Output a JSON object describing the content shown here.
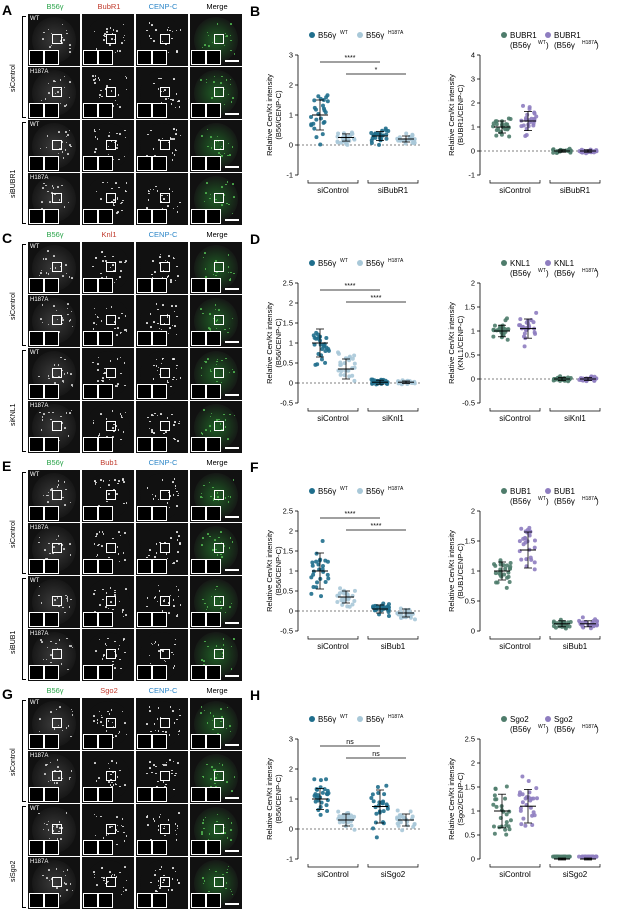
{
  "colors": {
    "b56_wt": "#1f6e8c",
    "b56_mut": "#a8c8d8",
    "partner_wt": "#4e7c6b",
    "partner_mut": "#8e7dc0"
  },
  "panels": [
    {
      "micro": {
        "letter": "A",
        "cols": [
          "B56γ",
          "BubR1",
          "CENP-C",
          "Merge"
        ],
        "col_colors": [
          "#2aa44a",
          "#c0392b",
          "#2d87c8",
          "#000"
        ],
        "groups": [
          {
            "label": "siControl",
            "rows": [
              "WT",
              "H187A"
            ]
          },
          {
            "label": "siBUBR1",
            "rows": [
              "WT",
              "H187A"
            ]
          }
        ]
      },
      "left": {
        "letter": "B",
        "ylabel1": "Relative Cen/Kt intensity",
        "ylabel2": "(B56/CENP-C)",
        "legend": [
          {
            "name": "B56γ",
            "sup": "WT"
          },
          {
            "name": "B56γ",
            "sup": "H187A"
          }
        ],
        "groups": [
          "siControl",
          "siBubR1"
        ],
        "ylim": [
          -1,
          3
        ],
        "ticks": [
          -1,
          0,
          1,
          2,
          3
        ],
        "sig": [
          "****",
          "*"
        ]
      },
      "right": {
        "ylabel1": "Relative Cen/Kt intensity",
        "ylabel2": "(BUBR1/CENP-C)",
        "legend": [
          {
            "name": "BUBR1",
            "sub": "(B56γ",
            "sup": "WT",
            "end": ")"
          },
          {
            "name": "BUBR1",
            "sub": "(B56γ",
            "sup": "H187A",
            "end": ")"
          }
        ],
        "groups": [
          "siControl",
          "siBubR1"
        ],
        "ylim": [
          -1,
          4
        ],
        "ticks": [
          -1,
          0,
          1,
          2,
          3,
          4
        ]
      }
    },
    {
      "micro": {
        "letter": "C",
        "cols": [
          "B56γ",
          "Knl1",
          "CENP-C",
          "Merge"
        ],
        "col_colors": [
          "#2aa44a",
          "#c0392b",
          "#2d87c8",
          "#000"
        ],
        "groups": [
          {
            "label": "siControl",
            "rows": [
              "WT",
              "H187A"
            ]
          },
          {
            "label": "siKNL1",
            "rows": [
              "WT",
              "H187A"
            ]
          }
        ]
      },
      "left": {
        "letter": "D",
        "ylabel1": "Relative Cen/Kt intensity",
        "ylabel2": "(B56/CENP-C)",
        "legend": [
          {
            "name": "B56γ",
            "sup": "WT"
          },
          {
            "name": "B56γ",
            "sup": "H187A"
          }
        ],
        "groups": [
          "siControl",
          "siKnl1"
        ],
        "ylim": [
          -0.5,
          2.5
        ],
        "ticks": [
          -0.5,
          0.0,
          0.5,
          1.0,
          1.5,
          2.0,
          2.5
        ],
        "sig": [
          "****",
          "****"
        ]
      },
      "right": {
        "ylabel1": "Relative Cen/Kt intensity",
        "ylabel2": "(KNL1/CENP-C)",
        "legend": [
          {
            "name": "KNL1",
            "sub": "(B56γ",
            "sup": "WT",
            "end": ")"
          },
          {
            "name": "KNL1",
            "sub": "(B56γ",
            "sup": "H187A",
            "end": ")"
          }
        ],
        "groups": [
          "siControl",
          "siKnl1"
        ],
        "ylim": [
          -0.5,
          2.0
        ],
        "ticks": [
          -0.5,
          0.0,
          0.5,
          1.0,
          1.5,
          2.0
        ]
      }
    },
    {
      "micro": {
        "letter": "E",
        "cols": [
          "B56γ",
          "Bub1",
          "CENP-C",
          "Merge"
        ],
        "col_colors": [
          "#2aa44a",
          "#c0392b",
          "#2d87c8",
          "#000"
        ],
        "groups": [
          {
            "label": "siControl",
            "rows": [
              "WT",
              "H187A"
            ]
          },
          {
            "label": "siBUB1",
            "rows": [
              "WT",
              "H187A"
            ]
          }
        ]
      },
      "left": {
        "letter": "F",
        "ylabel1": "Relative Cen/Kt intensity",
        "ylabel2": "(B56/CENP-C)",
        "legend": [
          {
            "name": "B56γ",
            "sup": "WT"
          },
          {
            "name": "B56γ",
            "sup": "H187A"
          }
        ],
        "groups": [
          "siControl",
          "siBub1"
        ],
        "ylim": [
          -0.5,
          2.5
        ],
        "ticks": [
          -0.5,
          0.0,
          0.5,
          1.0,
          1.5,
          2.0,
          2.5
        ],
        "sig": [
          "****",
          "****"
        ]
      },
      "right": {
        "ylabel1": "Relative Cen/Kt intensity",
        "ylabel2": "(BUB1/CENP-C)",
        "legend": [
          {
            "name": "BUB1",
            "sub": "(B56γ",
            "sup": "WT",
            "end": ")"
          },
          {
            "name": "BUB1",
            "sub": "(B56γ",
            "sup": "H187A",
            "end": ")"
          }
        ],
        "groups": [
          "siControl",
          "siBub1"
        ],
        "ylim": [
          0.0,
          2.0
        ],
        "ticks": [
          0.0,
          0.5,
          1.0,
          1.5,
          2.0
        ]
      }
    },
    {
      "micro": {
        "letter": "G",
        "cols": [
          "B56γ",
          "Sgo2",
          "CENP-C",
          "Merge"
        ],
        "col_colors": [
          "#2aa44a",
          "#c0392b",
          "#2d87c8",
          "#000"
        ],
        "groups": [
          {
            "label": "siControl",
            "rows": [
              "WT",
              "H187A"
            ]
          },
          {
            "label": "siSgo2",
            "rows": [
              "WT",
              "H187A"
            ]
          }
        ]
      },
      "left": {
        "letter": "H",
        "ylabel1": "Relative Cen/Kt intensity",
        "ylabel2": "(B56/CENP-C)",
        "legend": [
          {
            "name": "B56γ",
            "sup": "WT"
          },
          {
            "name": "B56γ",
            "sup": "H187A"
          }
        ],
        "groups": [
          "siControl",
          "siSgo2"
        ],
        "ylim": [
          -1,
          3
        ],
        "ticks": [
          -1,
          0,
          1,
          2,
          3
        ],
        "sig": [
          "ns",
          "ns"
        ]
      },
      "right": {
        "ylabel1": "Relative Cen/Kt intensity",
        "ylabel2": "(Sgo2/CENP-C)",
        "legend": [
          {
            "name": "Sgo2",
            "sub": "(B56γ",
            "sup": "WT",
            "end": ")"
          },
          {
            "name": "Sgo2",
            "sub": "(B56γ",
            "sup": "H187A",
            "end": ")"
          }
        ],
        "groups": [
          "siControl",
          "siSgo2"
        ],
        "ylim": [
          0.0,
          2.5
        ],
        "ticks": [
          0.0,
          0.5,
          1.0,
          1.5,
          2.0,
          2.5
        ]
      }
    }
  ],
  "chart_data": [
    {
      "type": "scatter",
      "panel": "B",
      "categories": [
        "siControl WT",
        "siControl H187A",
        "siBubR1 WT",
        "siBubR1 H187A"
      ],
      "series": [
        {
          "name": "B56γ WT",
          "means": [
            1.0,
            null,
            0.3,
            null
          ],
          "sd": [
            0.5,
            null,
            0.15,
            null
          ]
        },
        {
          "name": "B56γ H187A",
          "means": [
            null,
            0.25,
            null,
            0.2
          ],
          "sd": [
            null,
            0.12,
            null,
            0.1
          ]
        }
      ]
    },
    {
      "type": "scatter",
      "panel": "B-right",
      "categories": [
        "siControl WT",
        "siControl H187A",
        "siBubR1 WT",
        "siBubR1 H187A"
      ],
      "series": [
        {
          "name": "BUBR1 (B56γ WT)",
          "means": [
            1.0,
            null,
            0.0,
            null
          ],
          "sd": [
            0.25,
            null,
            0.05,
            null
          ]
        },
        {
          "name": "BUBR1 (B56γ H187A)",
          "means": [
            null,
            1.25,
            null,
            0.0
          ],
          "sd": [
            null,
            0.4,
            null,
            0.05
          ]
        }
      ]
    },
    {
      "type": "scatter",
      "panel": "D",
      "categories": [
        "siControl WT",
        "siControl H187A",
        "siKnl1 WT",
        "siKnl1 H187A"
      ],
      "series": [
        {
          "name": "B56γ WT",
          "means": [
            1.0,
            null,
            0.02,
            null
          ],
          "sd": [
            0.35,
            null,
            0.05,
            null
          ]
        },
        {
          "name": "B56γ H187A",
          "means": [
            null,
            0.35,
            null,
            0.02
          ],
          "sd": [
            null,
            0.25,
            null,
            0.03
          ]
        }
      ]
    },
    {
      "type": "scatter",
      "panel": "D-right",
      "categories": [
        "siControl WT",
        "siControl H187A",
        "siKnl1 WT",
        "siKnl1 H187A"
      ],
      "series": [
        {
          "name": "KNL1 (B56γ WT)",
          "means": [
            1.0,
            null,
            0.0,
            null
          ],
          "sd": [
            0.12,
            null,
            0.03,
            null
          ]
        },
        {
          "name": "KNL1 (B56γ H187A)",
          "means": [
            null,
            1.05,
            null,
            0.0
          ],
          "sd": [
            null,
            0.2,
            null,
            0.03
          ]
        }
      ]
    },
    {
      "type": "scatter",
      "panel": "F",
      "categories": [
        "siControl WT",
        "siControl H187A",
        "siBub1 WT",
        "siBub1 H187A"
      ],
      "series": [
        {
          "name": "B56γ WT",
          "means": [
            1.0,
            null,
            0.05,
            null
          ],
          "sd": [
            0.45,
            null,
            0.1,
            null
          ]
        },
        {
          "name": "B56γ H187A",
          "means": [
            null,
            0.35,
            null,
            -0.05
          ],
          "sd": [
            null,
            0.15,
            null,
            0.1
          ]
        }
      ]
    },
    {
      "type": "scatter",
      "panel": "F-right",
      "categories": [
        "siControl WT",
        "siControl H187A",
        "siBub1 WT",
        "siBub1 H187A"
      ],
      "series": [
        {
          "name": "BUB1 (B56γ WT)",
          "means": [
            1.0,
            null,
            0.12,
            null
          ],
          "sd": [
            0.15,
            null,
            0.05,
            null
          ]
        },
        {
          "name": "BUB1 (B56γ H187A)",
          "means": [
            null,
            1.35,
            null,
            0.12
          ],
          "sd": [
            null,
            0.3,
            null,
            0.05
          ]
        }
      ]
    },
    {
      "type": "scatter",
      "panel": "H",
      "categories": [
        "siControl WT",
        "siControl H187A",
        "siSgo2 WT",
        "siSgo2 H187A"
      ],
      "series": [
        {
          "name": "B56γ WT",
          "means": [
            1.0,
            null,
            0.75,
            null
          ],
          "sd": [
            0.35,
            null,
            0.55,
            null
          ]
        },
        {
          "name": "B56γ H187A",
          "means": [
            null,
            0.3,
            null,
            0.3
          ],
          "sd": [
            null,
            0.2,
            null,
            0.2
          ]
        }
      ]
    },
    {
      "type": "scatter",
      "panel": "H-right",
      "categories": [
        "siControl WT",
        "siControl H187A",
        "siSgo2 WT",
        "siSgo2 H187A"
      ],
      "series": [
        {
          "name": "Sgo2 (B56γ WT)",
          "means": [
            1.0,
            null,
            0.0,
            null
          ],
          "sd": [
            0.35,
            null,
            0.02,
            null
          ]
        },
        {
          "name": "Sgo2 (B56γ H187A)",
          "means": [
            null,
            1.1,
            null,
            0.0
          ],
          "sd": [
            null,
            0.35,
            null,
            0.02
          ]
        }
      ]
    }
  ]
}
